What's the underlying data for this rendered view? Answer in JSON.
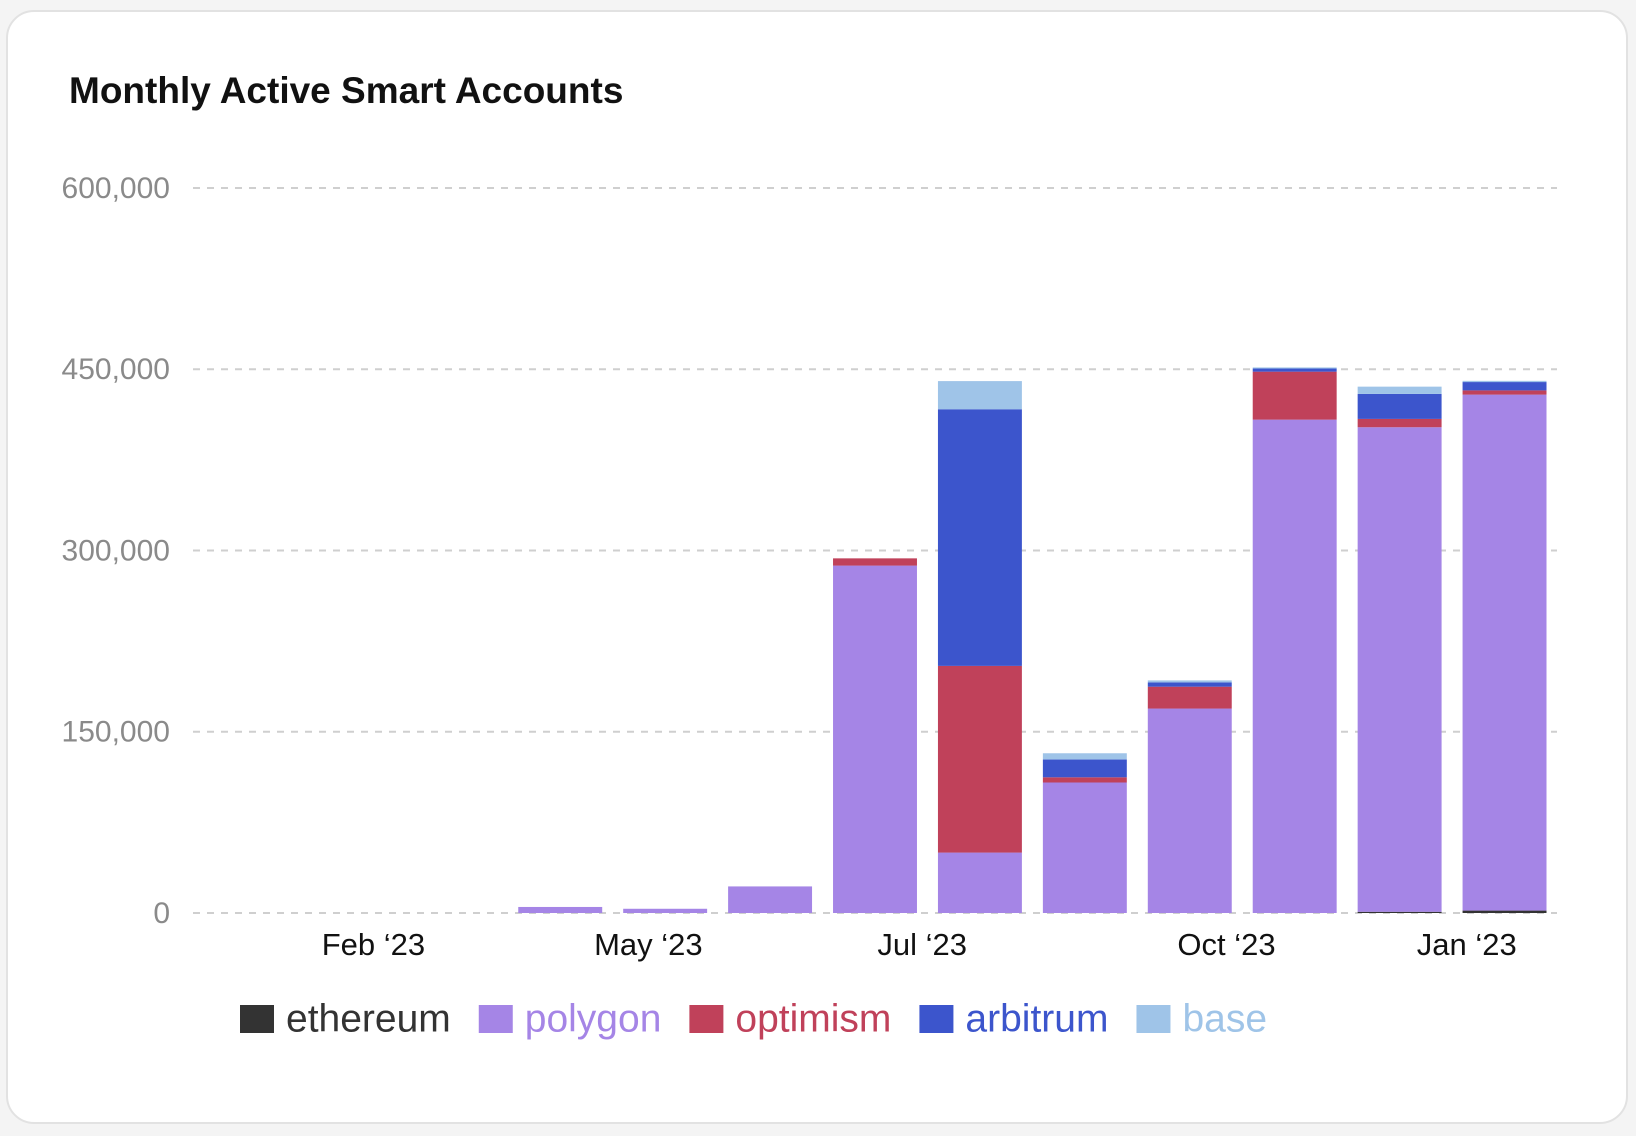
{
  "chart_data": {
    "type": "stacked_bar",
    "title": "Monthly Active Smart Accounts",
    "x": [
      3,
      4,
      5,
      6,
      7,
      8,
      9,
      10,
      11,
      12
    ],
    "xlim": [
      -0.5,
      12.5
    ],
    "xticks": [
      {
        "value": 1.22,
        "label": "Feb ‘23"
      },
      {
        "value": 3.84,
        "label": "May ‘23"
      },
      {
        "value": 6.45,
        "label": "Jul ‘23"
      },
      {
        "value": 9.35,
        "label": "Oct ‘23"
      },
      {
        "value": 11.64,
        "label": "Jan ‘23"
      }
    ],
    "ylim": [
      0,
      600000
    ],
    "yticks": [
      0,
      {
        "value": 150000,
        "label": "150,000"
      },
      {
        "value": 300000,
        "label": "300,000"
      },
      {
        "value": 450000,
        "label": "450,000"
      },
      {
        "value": 600000,
        "label": "600,000"
      }
    ],
    "grid": true,
    "legend": "bottom",
    "series": [
      {
        "name": "ethereum",
        "color": "#333333",
        "values": [
          0,
          0,
          0,
          0,
          0,
          0,
          0,
          0,
          1000,
          2000
        ]
      },
      {
        "name": "polygon",
        "color": "#a585e6",
        "values": [
          5000,
          3500,
          22000,
          287500,
          50000,
          108000,
          169200,
          408300,
          401000,
          427000
        ]
      },
      {
        "name": "optimism",
        "color": "#c0415a",
        "values": [
          0,
          0,
          0,
          6000,
          154500,
          4300,
          18100,
          39700,
          6900,
          3500
        ]
      },
      {
        "name": "arbitrum",
        "color": "#3c55cc",
        "values": [
          0,
          0,
          0,
          0,
          212400,
          14700,
          3500,
          2600,
          20700,
          6900
        ]
      },
      {
        "name": "base",
        "color": "#9fc4e8",
        "values": [
          0,
          0,
          0,
          0,
          23300,
          5200,
          1700,
          900,
          6000,
          1000
        ]
      }
    ]
  }
}
